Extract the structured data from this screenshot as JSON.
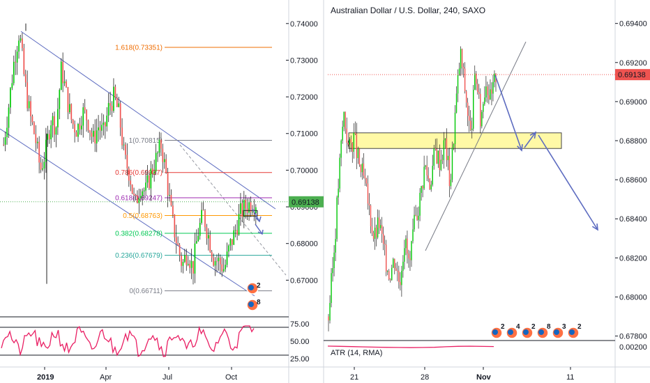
{
  "chart_data": [
    {
      "type": "candlestick",
      "timeframe": "daily",
      "xticks": [
        "2019",
        "Apr",
        "Jul",
        "Oct"
      ],
      "ylim": [
        0.66,
        0.743
      ],
      "yticks": [
        "0.74000",
        "0.73000",
        "0.72000",
        "0.71000",
        "0.70000",
        "0.69000",
        "0.68000",
        "0.67000"
      ],
      "last_price": 0.69138,
      "last_price_label": "0.69138",
      "price_path": [
        0.707,
        0.718,
        0.73,
        0.738,
        0.724,
        0.715,
        0.709,
        0.7,
        0.705,
        0.714,
        0.712,
        0.728,
        0.72,
        0.713,
        0.711,
        0.716,
        0.714,
        0.708,
        0.712,
        0.71,
        0.717,
        0.72,
        0.715,
        0.703,
        0.699,
        0.69,
        0.696,
        0.694,
        0.699,
        0.703,
        0.707,
        0.698,
        0.687,
        0.68,
        0.674,
        0.678,
        0.673,
        0.683,
        0.688,
        0.682,
        0.676,
        0.675,
        0.673,
        0.679,
        0.683,
        0.688,
        0.69,
        0.691,
        0.6914
      ],
      "fibonacci": [
        {
          "label": "1.618(0.73351)",
          "level": 0.73351,
          "color": "#ef6c00"
        },
        {
          "label": "1(0.70815)",
          "level": 0.70815,
          "color": "#787b86"
        },
        {
          "label": "0.786(0.69937)",
          "level": 0.69937,
          "color": "#e53935"
        },
        {
          "label": "0.618(0.69247)",
          "level": 0.69247,
          "color": "#9c27b0"
        },
        {
          "label": "0.5(0.68763)",
          "level": 0.68763,
          "color": "#ff9800"
        },
        {
          "label": "0.382(0.68278)",
          "level": 0.68278,
          "color": "#00c853"
        },
        {
          "label": "0.236(0.67679)",
          "level": 0.67679,
          "color": "#26a69a"
        },
        {
          "label": "0(0.66711)",
          "level": 0.66711,
          "color": "#787b86"
        }
      ],
      "oscillator": {
        "yticks": [
          "75.00",
          "50.00",
          "25.00"
        ],
        "ylim": [
          20,
          80
        ],
        "upper": 70,
        "lower": 30
      }
    },
    {
      "type": "candlestick",
      "title": "Australian Dollar / U.S. Dollar, 240, SAXO",
      "xticks": [
        "21",
        "28",
        "Nov",
        "11"
      ],
      "ylim": [
        0.6772,
        0.6952
      ],
      "yticks": [
        "0.69400",
        "0.69200",
        "0.69000",
        "0.68800",
        "0.68600",
        "0.68400",
        "0.68200",
        "0.68000",
        "0.67800"
      ],
      "last_price": 0.69138,
      "last_price_label": "0.69138",
      "price_path": [
        0.679,
        0.682,
        0.686,
        0.6895,
        0.6875,
        0.6882,
        0.6868,
        0.686,
        0.6845,
        0.683,
        0.6838,
        0.6822,
        0.6812,
        0.682,
        0.6808,
        0.683,
        0.6815,
        0.6838,
        0.685,
        0.6868,
        0.6858,
        0.6875,
        0.687,
        0.688,
        0.6858,
        0.6895,
        0.6925,
        0.6905,
        0.6882,
        0.6915,
        0.689,
        0.6912,
        0.69,
        0.6914
      ],
      "support_zone": [
        0.6876,
        0.6884
      ],
      "indicator": {
        "label": "ATR (14, RMA)",
        "yticks": [
          "0.00200"
        ],
        "path": [
          0.0021,
          0.00205,
          0.00198,
          0.00192,
          0.00185,
          0.0018,
          0.00176,
          0.00174,
          0.00176,
          0.00182,
          0.00195,
          0.00205,
          0.00208,
          0.00203,
          0.002
        ]
      }
    }
  ],
  "colors": {
    "up": "#26a69a",
    "down": "#ef5350",
    "up_bright": "#00c805",
    "channel": "#5c6bc0",
    "arrow": "#5c6bc0",
    "zone_fill": "#fff9a6",
    "zone_stroke": "#444444",
    "price_tag": "#ef5350",
    "price_tag_left": "#4caf50",
    "osc": "#e91e63"
  },
  "event_icons": {
    "left": [
      "2",
      "8"
    ],
    "right": [
      "2",
      "4",
      "2",
      "8",
      "3",
      "2"
    ]
  }
}
